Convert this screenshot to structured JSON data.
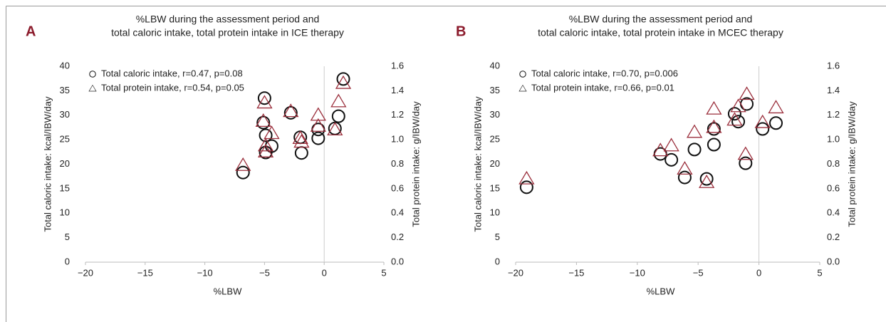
{
  "chart_data": [
    {
      "type": "scatter",
      "panel": "A",
      "title": [
        "%LBW during the assessment period and",
        "total caloric intake, total protein intake in ICE therapy"
      ],
      "xlabel": "%LBW",
      "ylabel": "Total caloric intake: kcal/IBW/day",
      "y2label": "Total protein intake: g/IBW/day",
      "xlim": [
        -20,
        5
      ],
      "xticks": [
        {
          "value": -20,
          "label": "−20"
        },
        {
          "value": -15,
          "label": "−15"
        },
        {
          "value": -10,
          "label": "−10"
        },
        {
          "value": -5,
          "label": "−5"
        },
        0,
        5
      ],
      "ylim": [
        0,
        40
      ],
      "yticks": [
        0,
        5,
        10,
        15,
        20,
        25,
        30,
        35,
        40
      ],
      "y2lim": [
        0,
        1.6
      ],
      "y2ticks": [
        {
          "value": 0,
          "label": "0.0"
        },
        0.2,
        0.4,
        0.6,
        0.8,
        {
          "value": 1,
          "label": "1.0"
        },
        1.2,
        1.4,
        1.6
      ],
      "zero_line": true,
      "x": [
        -6.8,
        -5.0,
        -5.1,
        -4.9,
        -4.4,
        -4.9,
        -2.8,
        -2.0,
        -1.9,
        -0.5,
        -0.5,
        0.9,
        1.2,
        1.6
      ],
      "series": [
        {
          "name": "Total caloric intake, r=0.47, p=0.08",
          "marker": "circle",
          "color": "#111111",
          "values": [
            18.3,
            33.5,
            28.5,
            25.9,
            23.7,
            22.4,
            30.5,
            25.5,
            22.3,
            25.3,
            27.1,
            27.3,
            29.8,
            37.4
          ]
        },
        {
          "name": "Total protein intake, r=0.54, p=0.05",
          "marker": "triangle",
          "color": "#9b2f3c",
          "axis": "y2",
          "values": [
            0.79,
            1.3,
            1.15,
            0.95,
            1.05,
            0.9,
            1.23,
            1.01,
            0.98,
            1.11,
            1.2,
            1.08,
            1.31,
            1.46
          ]
        }
      ]
    },
    {
      "type": "scatter",
      "panel": "B",
      "title": [
        "%LBW during the assessment period and",
        "total caloric intake, total protein intake in MCEC therapy"
      ],
      "xlabel": "%LBW",
      "ylabel": "Total caloric intake: kcal/IBW/day",
      "y2label": "Total protein intake: g/IBW/day",
      "xlim": [
        -20,
        5
      ],
      "xticks": [
        {
          "value": -20,
          "label": "−20"
        },
        {
          "value": -15,
          "label": "−15"
        },
        {
          "value": -10,
          "label": "−10"
        },
        {
          "value": -5,
          "label": "−5"
        },
        0,
        5
      ],
      "ylim": [
        0,
        40
      ],
      "yticks": [
        0,
        5,
        10,
        15,
        20,
        25,
        30,
        35,
        40
      ],
      "y2lim": [
        0,
        1.6
      ],
      "y2ticks": [
        {
          "value": 0,
          "label": "0.0"
        },
        0.2,
        0.4,
        0.6,
        0.8,
        {
          "value": 1,
          "label": "1.0"
        },
        1.2,
        1.4,
        1.6
      ],
      "zero_line": true,
      "x": [
        -19.1,
        -8.1,
        -7.2,
        -6.1,
        -5.3,
        -4.3,
        -3.7,
        -3.7,
        -2.0,
        -1.7,
        -1.0,
        -1.1,
        0.3,
        1.4
      ],
      "series": [
        {
          "name": "Total caloric intake, r=0.70, p=0.006",
          "marker": "circle",
          "color": "#111111",
          "values": [
            15.3,
            22.1,
            20.9,
            17.3,
            23.0,
            17.0,
            24.0,
            27.2,
            30.3,
            28.7,
            32.3,
            20.2,
            27.2,
            28.4
          ]
        },
        {
          "name": "Total protein intake, r=0.66, p=0.01",
          "marker": "triangle",
          "color": "#9b2f3c",
          "axis": "y2",
          "values": [
            0.68,
            0.91,
            0.95,
            0.76,
            1.06,
            0.65,
            1.25,
            1.1,
            1.16,
            1.27,
            1.37,
            0.88,
            1.14,
            1.26
          ]
        }
      ]
    }
  ]
}
